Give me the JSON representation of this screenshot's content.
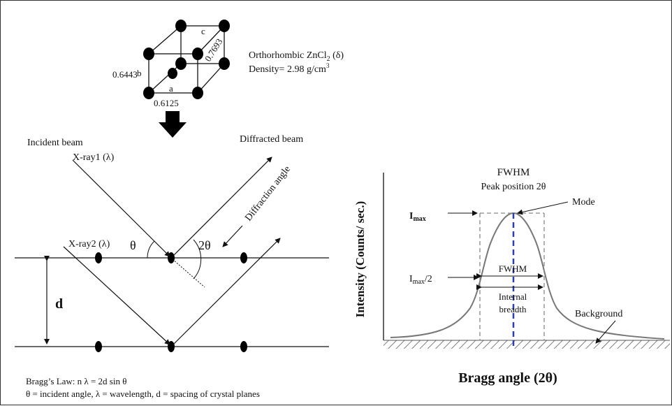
{
  "crystal": {
    "a_label": "a",
    "b_label": "b",
    "c_label": "c",
    "a_value": "0.6125",
    "b_value": "0.6443",
    "c_value": "0.7693",
    "title_main": "Orthorhombic ZnCl",
    "title_sub": "2",
    "title_phase": " (δ)",
    "density": "Density= 2.98 g/cm",
    "density_sup": "3"
  },
  "bragg": {
    "incident_beam": "Incident beam",
    "xray1": "X-ray1 (λ)",
    "xray2": "X-ray2 (λ)",
    "diffracted_beam": "Diffracted beam",
    "diffraction_angle": "Diffraction angle",
    "theta": "θ",
    "two_theta": "2θ",
    "d": "d",
    "law": "Bragg’s Law: n λ = 2d sin θ",
    "legend": "θ = incident angle, λ = wavelength, d = spacing of crystal planes"
  },
  "peak": {
    "fwhm_title": "FWHM",
    "peak_position": "Peak position 2θ",
    "mode": "Mode",
    "imax_main": "I",
    "imax_sub": "max",
    "imax2_main": "I",
    "imax2_sub": "max",
    "imax2_tail": "/2",
    "fwhm_inner": "FWHM",
    "internal_1": "Internal",
    "internal_2": "breadth",
    "background": "Background",
    "ylabel": "Intensity (Counts/ sec.)",
    "xlabel": "Bragg angle (2θ)"
  }
}
